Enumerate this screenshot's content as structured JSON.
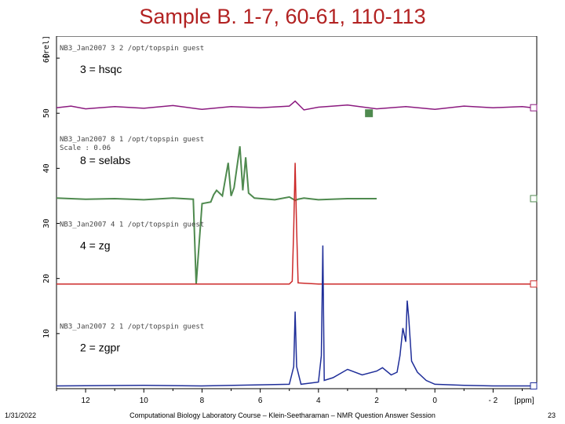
{
  "slide": {
    "title": "Sample B. 1-7, 60-61, 110-113",
    "footer_date": "1/31/2022",
    "footer_course": "Computational Biology Laboratory Course – Klein-Seetharaman – NMR Question Answer Session",
    "footer_page": "23"
  },
  "chart_data": {
    "type": "line",
    "title": "",
    "xlabel": "[ppm]",
    "ylabel": "[rel]",
    "x_reversed": true,
    "xlim": [
      13.0,
      -3.5
    ],
    "ylim": [
      0,
      64
    ],
    "x_ticks": [
      12,
      10,
      8,
      6,
      4,
      2,
      0,
      -2
    ],
    "x_tick_labels": [
      "12",
      "10",
      "8",
      "6",
      "4",
      "2",
      "0",
      "- 2"
    ],
    "y_ticks": [
      10,
      20,
      30,
      40,
      50,
      60
    ],
    "y_tick_labels": [
      "10",
      "20",
      "30",
      "40",
      "50",
      "60"
    ],
    "colors": {
      "hsqc": "#8b1a7f",
      "selabs": "#4f8a4f",
      "zg": "#cc2a2a",
      "zgpr": "#1f2e99"
    },
    "series": [
      {
        "key": "hsqc",
        "label": "NB3_Jan2007   3  2   /opt/topspin  guest",
        "annotation": "3 = hsqc",
        "baseline": 51,
        "x": [
          13.0,
          12.5,
          12.0,
          11.0,
          10.0,
          9.0,
          8.0,
          7.0,
          6.0,
          5.0,
          4.8,
          4.5,
          4.0,
          3.0,
          2.0,
          1.0,
          0.0,
          -1.0,
          -2.0,
          -3.0,
          -3.5
        ],
        "y": [
          51.0,
          51.3,
          50.8,
          51.2,
          50.9,
          51.4,
          50.7,
          51.2,
          51.0,
          51.3,
          52.2,
          50.6,
          51.1,
          51.5,
          50.8,
          51.2,
          50.7,
          51.3,
          51.0,
          51.2,
          50.9
        ]
      },
      {
        "key": "selabs",
        "label": "NB3_Jan2007   8  1   /opt/topspin  guest",
        "subtitle": "Scale : 0.06",
        "annotation": "8 = selabs",
        "baseline": 34.5,
        "x": [
          13.0,
          12.0,
          11.0,
          10.0,
          9.0,
          8.3,
          8.2,
          8.0,
          7.7,
          7.6,
          7.5,
          7.3,
          7.1,
          7.0,
          6.9,
          6.7,
          6.6,
          6.5,
          6.4,
          6.2,
          5.5,
          5.0,
          4.8,
          4.7,
          4.5,
          4.0,
          3.0,
          2.0
        ],
        "y": [
          34.6,
          34.4,
          34.5,
          34.3,
          34.6,
          34.4,
          19.0,
          33.6,
          33.9,
          35.2,
          36.0,
          35.0,
          41.0,
          35.0,
          36.5,
          44.0,
          36.0,
          42.0,
          35.5,
          34.6,
          34.3,
          34.8,
          34.2,
          34.4,
          34.6,
          34.3,
          34.5,
          34.5
        ]
      },
      {
        "key": "zg",
        "label": "NB3_Jan2007   4  1   /opt/topspin  guest",
        "annotation": "4 = zg",
        "baseline": 19,
        "x": [
          13.0,
          8.0,
          5.0,
          4.9,
          4.85,
          4.8,
          4.75,
          4.7,
          4.0,
          3.0,
          2.0,
          1.0,
          0.0,
          -2.0,
          -3.5
        ],
        "y": [
          19.0,
          19.0,
          19.0,
          19.5,
          29.0,
          41.0,
          29.0,
          19.2,
          19.0,
          19.0,
          19.0,
          19.0,
          19.0,
          19.0,
          19.0
        ]
      },
      {
        "key": "zgpr",
        "label": "NB3_Jan2007   2  1   /opt/topspin  guest",
        "annotation": "2 = zgpr",
        "baseline": 0.5,
        "x": [
          13.0,
          10.0,
          8.0,
          6.0,
          5.0,
          4.85,
          4.8,
          4.75,
          4.6,
          4.0,
          3.9,
          3.85,
          3.8,
          3.5,
          3.0,
          2.5,
          2.0,
          1.8,
          1.5,
          1.3,
          1.2,
          1.1,
          1.0,
          0.95,
          0.9,
          0.8,
          0.6,
          0.3,
          0.0,
          -1.0,
          -2.0,
          -3.5
        ],
        "y": [
          0.5,
          0.6,
          0.5,
          0.7,
          0.8,
          4.0,
          14.0,
          4.0,
          0.8,
          1.2,
          6.0,
          26.0,
          1.5,
          2.0,
          3.5,
          2.5,
          3.2,
          3.8,
          2.5,
          3.0,
          6.0,
          11.0,
          8.5,
          16.0,
          13.0,
          5.0,
          3.0,
          1.5,
          0.8,
          0.6,
          0.5,
          0.5
        ]
      }
    ]
  }
}
